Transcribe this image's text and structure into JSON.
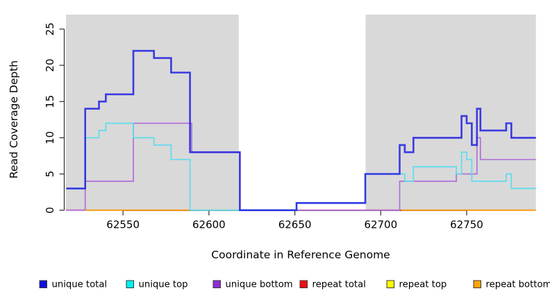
{
  "chart_data": {
    "type": "line",
    "subtype": "step-coverage",
    "title": "",
    "xlabel": "Coordinate in Reference Genome",
    "ylabel": "Read Coverage Depth",
    "xlim": [
      62516.8,
      62790.3
    ],
    "ylim": [
      0,
      27
    ],
    "x_ticks": [
      62550,
      62600,
      62650,
      62700,
      62750
    ],
    "y_ticks": [
      0,
      5,
      10,
      15,
      20,
      25
    ],
    "grid": false,
    "legend_position": "bottom",
    "background_color": "#ffffff",
    "band_color": "#d9d9d9",
    "shaded_regions": [
      {
        "from": 62516.8,
        "to": 62617.4
      },
      {
        "from": 62691.2,
        "to": 62790.3
      }
    ],
    "series": [
      {
        "label": "unique total",
        "color": "#2323e0",
        "legend_color": "#0e0edf",
        "render": "steps",
        "steps": [
          [
            62517,
            3
          ],
          [
            62528,
            14
          ],
          [
            62536,
            15
          ],
          [
            62540,
            16
          ],
          [
            62556,
            22
          ],
          [
            62568,
            21
          ],
          [
            62578,
            19
          ],
          [
            62589,
            8
          ],
          [
            62618,
            0
          ],
          [
            62651,
            1
          ],
          [
            62691,
            5
          ],
          [
            62711,
            9
          ],
          [
            62714,
            8
          ],
          [
            62719,
            10
          ],
          [
            62747,
            13
          ],
          [
            62750,
            12
          ],
          [
            62753,
            9
          ],
          [
            62756,
            14
          ],
          [
            62758,
            11
          ],
          [
            62773,
            12
          ],
          [
            62776,
            10
          ]
        ]
      },
      {
        "label": "unique top",
        "color": "#5cdcee",
        "legend_color": "#00f2f2",
        "render": "steps",
        "steps": [
          [
            62517,
            3
          ],
          [
            62528,
            10
          ],
          [
            62536,
            11
          ],
          [
            62540,
            12
          ],
          [
            62556,
            10
          ],
          [
            62568,
            9
          ],
          [
            62578,
            7
          ],
          [
            62589,
            0
          ],
          [
            62651,
            1
          ],
          [
            62691,
            5
          ],
          [
            62714,
            4
          ],
          [
            62719,
            6
          ],
          [
            62744,
            5
          ],
          [
            62747,
            8
          ],
          [
            62750,
            7
          ],
          [
            62753,
            4
          ],
          [
            62773,
            5
          ],
          [
            62776,
            3
          ]
        ]
      },
      {
        "label": "unique bottom",
        "color": "#b16fd8",
        "legend_color": "#8d2ed2",
        "render": "steps",
        "steps": [
          [
            62517,
            0
          ],
          [
            62528,
            4
          ],
          [
            62556,
            12
          ],
          [
            62590,
            8
          ],
          [
            62618,
            0
          ],
          [
            62711,
            4
          ],
          [
            62744,
            5
          ],
          [
            62756,
            10
          ],
          [
            62758,
            7
          ]
        ]
      },
      {
        "label": "repeat total",
        "color": "#c8416e",
        "legend_color": "#f20d0d",
        "render": "baseline",
        "steps": [
          [
            62517,
            0
          ]
        ]
      },
      {
        "label": "repeat top",
        "color": "#ffff00",
        "legend_color": "#fbff00",
        "render": "baseline",
        "steps": [
          [
            62517,
            0
          ]
        ]
      },
      {
        "label": "repeat bottom",
        "color": "#ff9400",
        "legend_color": "#ffa408",
        "render": "baseline",
        "steps": [
          [
            62517,
            0
          ]
        ]
      }
    ],
    "baseline_segments": [
      {
        "from": 62516.8,
        "to": 62528,
        "color": "#c8416e"
      },
      {
        "from": 62528,
        "to": 62589,
        "color": "#ff9400"
      },
      {
        "from": 62589,
        "to": 62618,
        "color": "#8fd3a3"
      },
      {
        "from": 62618,
        "to": 62651,
        "color": "#8a46d0"
      },
      {
        "from": 62651,
        "to": 62712,
        "color": "#c8416e"
      },
      {
        "from": 62712,
        "to": 62790.3,
        "color": "#ff9400"
      }
    ]
  }
}
